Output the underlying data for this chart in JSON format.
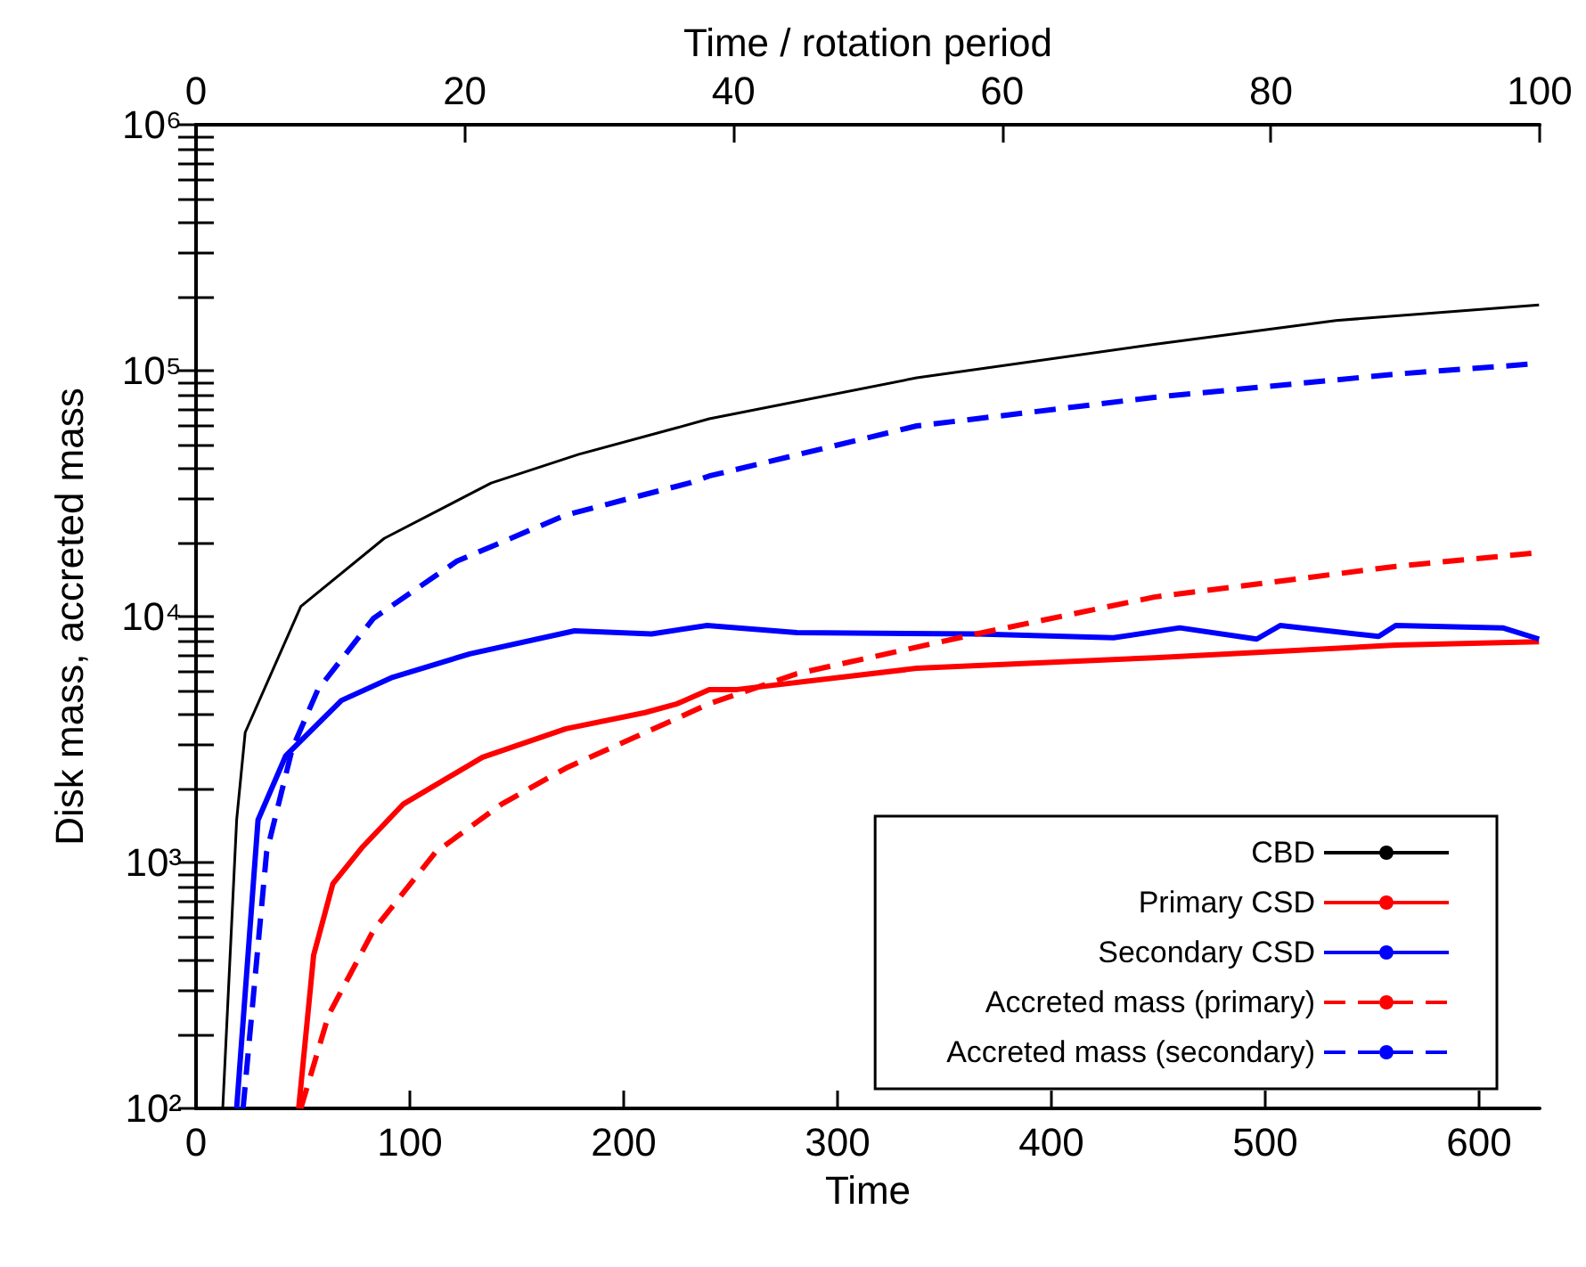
{
  "chart_data": {
    "type": "line",
    "xlabel": "Time",
    "x2label": "Time / rotation period",
    "ylabel": "Disk mass, accreted mass",
    "log": "y",
    "legend": "bottom right",
    "grid": false,
    "xlim": [
      0,
      628.3
    ],
    "xticks": [
      0,
      100,
      200,
      300,
      400,
      500,
      600
    ],
    "x2lim": [
      0,
      100
    ],
    "x2ticks": [
      0,
      20,
      40,
      60,
      80,
      100
    ],
    "ylim": [
      100,
      1000000
    ],
    "yticks": [
      {
        "value": 100,
        "label": "10²"
      },
      {
        "value": 200,
        "label": null
      },
      {
        "value": 300,
        "label": null
      },
      {
        "value": 400,
        "label": null
      },
      {
        "value": 500,
        "label": null
      },
      {
        "value": 600,
        "label": null
      },
      {
        "value": 700,
        "label": null
      },
      {
        "value": 800,
        "label": null
      },
      {
        "value": 900,
        "label": null
      },
      {
        "value": 1000,
        "label": "10³"
      },
      {
        "value": 2000,
        "label": null
      },
      {
        "value": 3000,
        "label": null
      },
      {
        "value": 4000,
        "label": null
      },
      {
        "value": 5000,
        "label": null
      },
      {
        "value": 6000,
        "label": null
      },
      {
        "value": 7000,
        "label": null
      },
      {
        "value": 8000,
        "label": null
      },
      {
        "value": 9000,
        "label": null
      },
      {
        "value": 10000,
        "label": "10⁴"
      },
      {
        "value": 20000,
        "label": null
      },
      {
        "value": 30000,
        "label": null
      },
      {
        "value": 40000,
        "label": null
      },
      {
        "value": 50000,
        "label": null
      },
      {
        "value": 60000,
        "label": null
      },
      {
        "value": 70000,
        "label": null
      },
      {
        "value": 80000,
        "label": null
      },
      {
        "value": 90000,
        "label": null
      },
      {
        "value": 100000,
        "label": "10⁵"
      },
      {
        "value": 200000,
        "label": null
      },
      {
        "value": 300000,
        "label": null
      },
      {
        "value": 400000,
        "label": null
      },
      {
        "value": 500000,
        "label": null
      },
      {
        "value": 600000,
        "label": null
      },
      {
        "value": 700000,
        "label": null
      },
      {
        "value": 800000,
        "label": null
      },
      {
        "value": 900000,
        "label": null
      },
      {
        "value": 1000000,
        "label": "10⁶"
      }
    ],
    "series": [
      {
        "name": "CBD",
        "color": "#000000",
        "line_style": "solid",
        "x": [
          12.5,
          19,
          23,
          49,
          88,
          138,
          179,
          225,
          240,
          337,
          448,
          533,
          628
        ],
        "values": [
          100,
          1490,
          3380,
          11000,
          20800,
          34900,
          45700,
          58600,
          63700,
          93500,
          128000,
          160000,
          185000
        ]
      },
      {
        "name": "Primary CSD",
        "color": "#ff0000",
        "line_style": "solid",
        "x": [
          48,
          55,
          64,
          78,
          97,
          134,
          173,
          210,
          225,
          240,
          253,
          337,
          448,
          561,
          628
        ],
        "values": [
          100,
          420,
          820,
          1160,
          1730,
          2680,
          3500,
          4070,
          4420,
          5050,
          5050,
          6160,
          6800,
          7650,
          7900
        ]
      },
      {
        "name": "Secondary CSD",
        "color": "#0000ff",
        "line_style": "solid",
        "x": [
          19,
          29,
          42,
          68,
          92,
          128,
          177,
          213,
          239,
          281,
          365,
          429,
          460,
          496,
          507,
          553,
          561,
          611,
          628
        ],
        "values": [
          100,
          1490,
          2720,
          4560,
          5670,
          7050,
          8750,
          8500,
          9200,
          8600,
          8500,
          8200,
          9000,
          8100,
          9200,
          8300,
          9200,
          9000,
          8100
        ]
      },
      {
        "name": "Accreted mass (primary)",
        "color": "#ff0000",
        "line_style": "dashed",
        "x": [
          49,
          62,
          83,
          112,
          143,
          173,
          225,
          240,
          281,
          365,
          448,
          561,
          628
        ],
        "values": [
          100,
          240,
          530,
          1100,
          1730,
          2420,
          3860,
          4420,
          5860,
          8500,
          12000,
          16000,
          18200
        ]
      },
      {
        "name": "Accreted mass (secondary)",
        "color": "#0000ff",
        "line_style": "dashed",
        "x": [
          22,
          33,
          45,
          57,
          83,
          122,
          173,
          231,
          240,
          337,
          448,
          561,
          628
        ],
        "values": [
          100,
          1100,
          2900,
          5050,
          9840,
          16800,
          25900,
          35000,
          37300,
          59600,
          77900,
          96800,
          107000
        ]
      }
    ]
  }
}
